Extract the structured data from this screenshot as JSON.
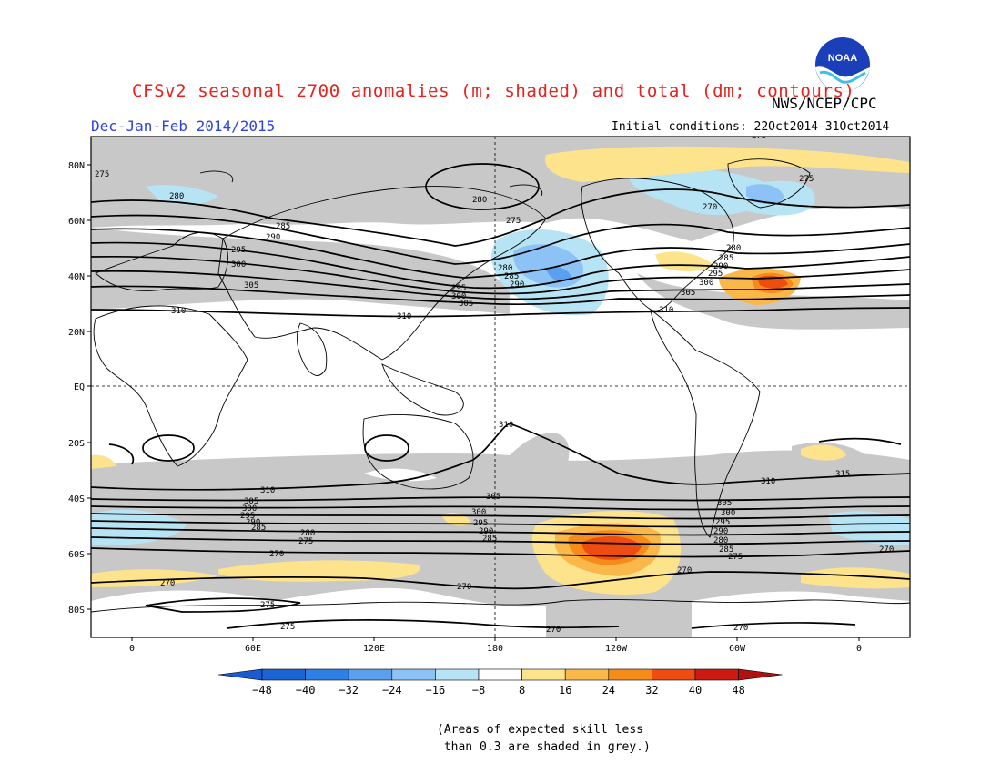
{
  "title": "CFSv2 seasonal z700 anomalies (m; shaded) and total (dm; contours)",
  "agency": "NWS/NCEP/CPC",
  "logo_text": "NOAA",
  "season": "Dec-Jan-Feb 2014/2015",
  "initial_conditions": "Initial conditions: 22Oct2014-31Oct2014",
  "lat_labels": [
    "80N",
    "60N",
    "40N",
    "20N",
    "EQ",
    "20S",
    "40S",
    "60S",
    "80S"
  ],
  "lon_labels": [
    "0",
    "60E",
    "120E",
    "180",
    "120W",
    "60W",
    "0"
  ],
  "colorbar": {
    "labels": [
      "-48",
      "-40",
      "-32",
      "-24",
      "-16",
      "-8",
      "8",
      "16",
      "24",
      "32",
      "40",
      "48"
    ],
    "colors": [
      "#1a64d6",
      "#2f80e6",
      "#5aa0ee",
      "#8cc2f5",
      "#b6e4f4",
      "#ffffff",
      "#fde48c",
      "#fbb84a",
      "#f58c1a",
      "#ee4c10",
      "#cc1a10"
    ],
    "left_arrow": "#1a5cd0",
    "right_arrow": "#b01010"
  },
  "contour_labels": [
    "275",
    "280",
    "285",
    "290",
    "295",
    "300",
    "305",
    "310",
    "315",
    "270"
  ],
  "note": "(Areas of expected skill less\n than 0.3 are shaded in grey.)"
}
